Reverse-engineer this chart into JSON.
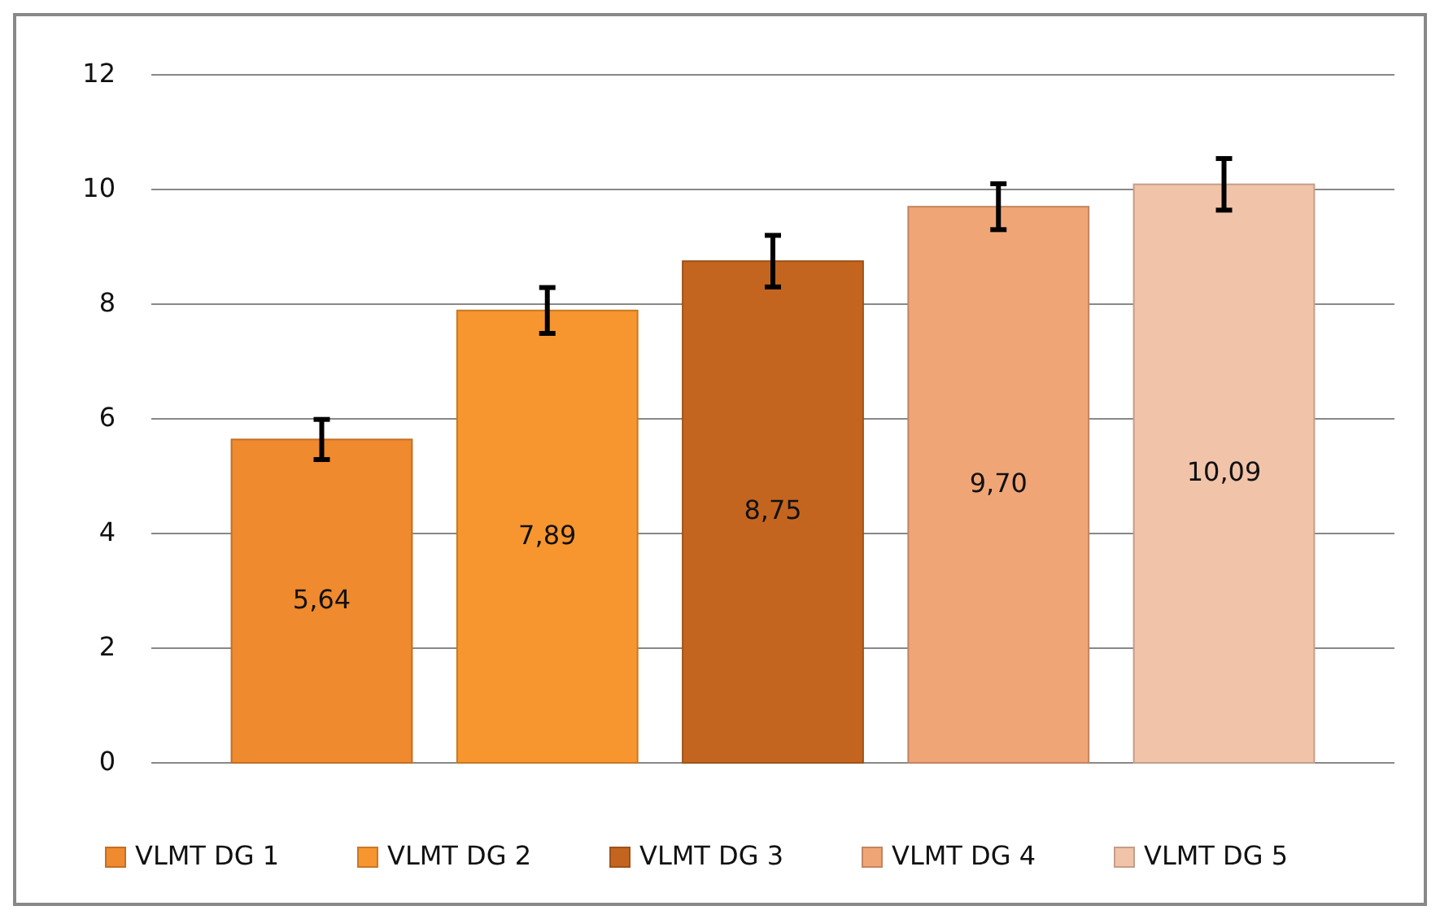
{
  "chart_data": {
    "type": "bar",
    "categories": [
      null
    ],
    "series": [
      {
        "name": "VLMT DG 1",
        "color": "#f08a2e",
        "values": [
          5.64
        ],
        "errors": [
          0.35
        ],
        "value_labels": [
          "5,64"
        ]
      },
      {
        "name": "VLMT DG 2",
        "color": "#f7962f",
        "values": [
          7.89
        ],
        "errors": [
          0.4
        ],
        "value_labels": [
          "7,89"
        ]
      },
      {
        "name": "VLMT DG 3",
        "color": "#c4651f",
        "values": [
          8.75
        ],
        "errors": [
          0.45
        ],
        "value_labels": [
          "8,75"
        ]
      },
      {
        "name": "VLMT DG 4",
        "color": "#f0a577",
        "values": [
          9.7
        ],
        "errors": [
          0.4
        ],
        "value_labels": [
          "9,70"
        ]
      },
      {
        "name": "VLMT DG 5",
        "color": "#f1c4aa",
        "values": [
          10.09
        ],
        "errors": [
          0.45
        ],
        "value_labels": [
          "10,09"
        ]
      }
    ],
    "ylim": [
      0,
      12
    ],
    "yticks": [
      0,
      2,
      4,
      6,
      8,
      10,
      12
    ],
    "grid": "y",
    "legend": "bottom"
  }
}
